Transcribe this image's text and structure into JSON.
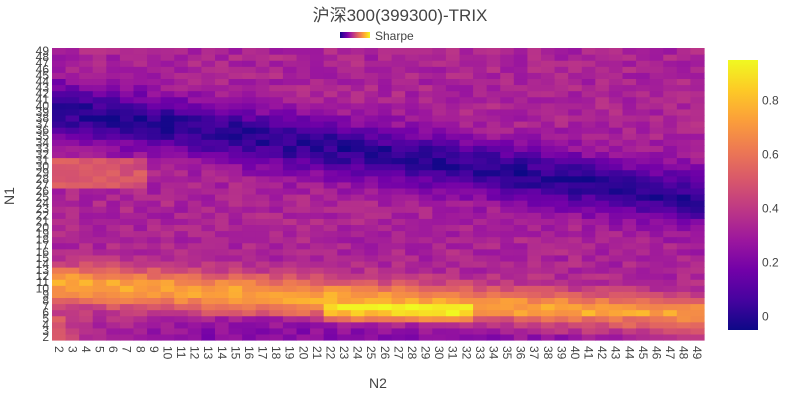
{
  "chart_data": {
    "type": "heatmap",
    "title": "沪深300(399300)-TRIX",
    "xlabel": "N2",
    "ylabel": "N1",
    "legend": {
      "label": "Sharpe",
      "placement": "top-center"
    },
    "x": {
      "start": 2,
      "end": 49,
      "step": 1
    },
    "y": {
      "start": 2,
      "end": 49,
      "step": 1
    },
    "colorscale": "plasma",
    "zlim": [
      -0.05,
      0.95
    ],
    "colorbar": {
      "ticks": [
        0,
        0.2,
        0.4,
        0.6,
        0.8
      ],
      "tick_labels": [
        "0",
        "0.2",
        "0.4",
        "0.6",
        "0.8"
      ]
    },
    "colorscale_stops": [
      "#0d0887",
      "#46039f",
      "#7201a8",
      "#9c179e",
      "#bd3786",
      "#d8576b",
      "#ed7953",
      "#fb9f3a",
      "#fdca26",
      "#f0f921"
    ],
    "values_note": "",
    "z_model": {
      "low_band": {
        "n1_center_base": 40,
        "n1_slope_per_n2": -0.31,
        "value": 0.0
      },
      "high_band": {
        "n1_center_base": 11,
        "n1_slope_per_n2": -0.12,
        "value": 0.78
      }
    }
  }
}
